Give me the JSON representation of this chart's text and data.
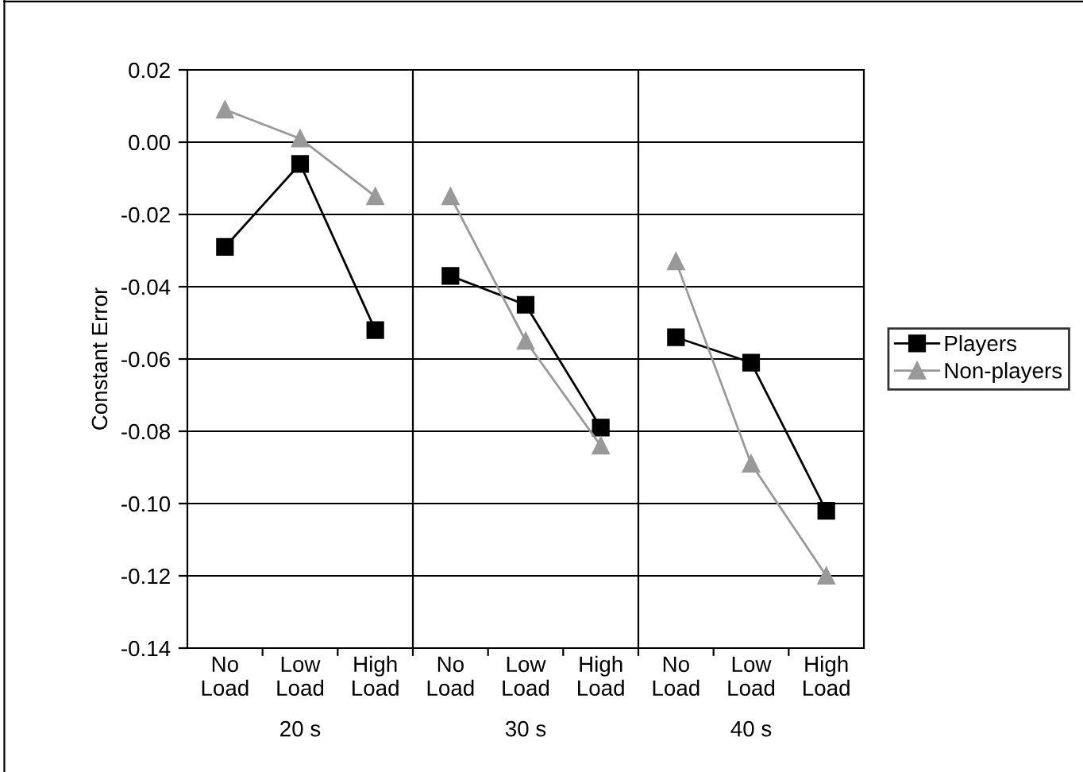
{
  "chart_data": {
    "type": "line",
    "ylabel": "Constant Error",
    "categories": [
      "No\nLoad",
      "Low\nLoad",
      "High\nLoad",
      "No\nLoad",
      "Low\nLoad",
      "High\nLoad",
      "No\nLoad",
      "Low\nLoad",
      "High\nLoad"
    ],
    "annotations": [
      "20 s",
      "30 s",
      "40 s"
    ],
    "series": [
      {
        "name": "Players",
        "color": "#000000",
        "marker": "square",
        "values": [
          -0.029,
          -0.006,
          -0.052,
          -0.037,
          -0.045,
          -0.079,
          -0.054,
          -0.061,
          -0.102
        ]
      },
      {
        "name": "Non-players",
        "color": "#999999",
        "marker": "triangle",
        "values": [
          0.009,
          0.001,
          -0.015,
          -0.015,
          -0.055,
          -0.084,
          -0.033,
          -0.089,
          -0.12
        ]
      }
    ],
    "ylim": [
      -0.14,
      0.02
    ],
    "yticks": [
      0.02,
      {
        "value": 0.0,
        "label": "0.00"
      },
      -0.02,
      -0.04,
      -0.06,
      -0.08,
      {
        "value": -0.1,
        "label": "-0.10"
      },
      -0.12,
      -0.14
    ],
    "grid": "y",
    "legend": "right",
    "line_style": "solid"
  }
}
